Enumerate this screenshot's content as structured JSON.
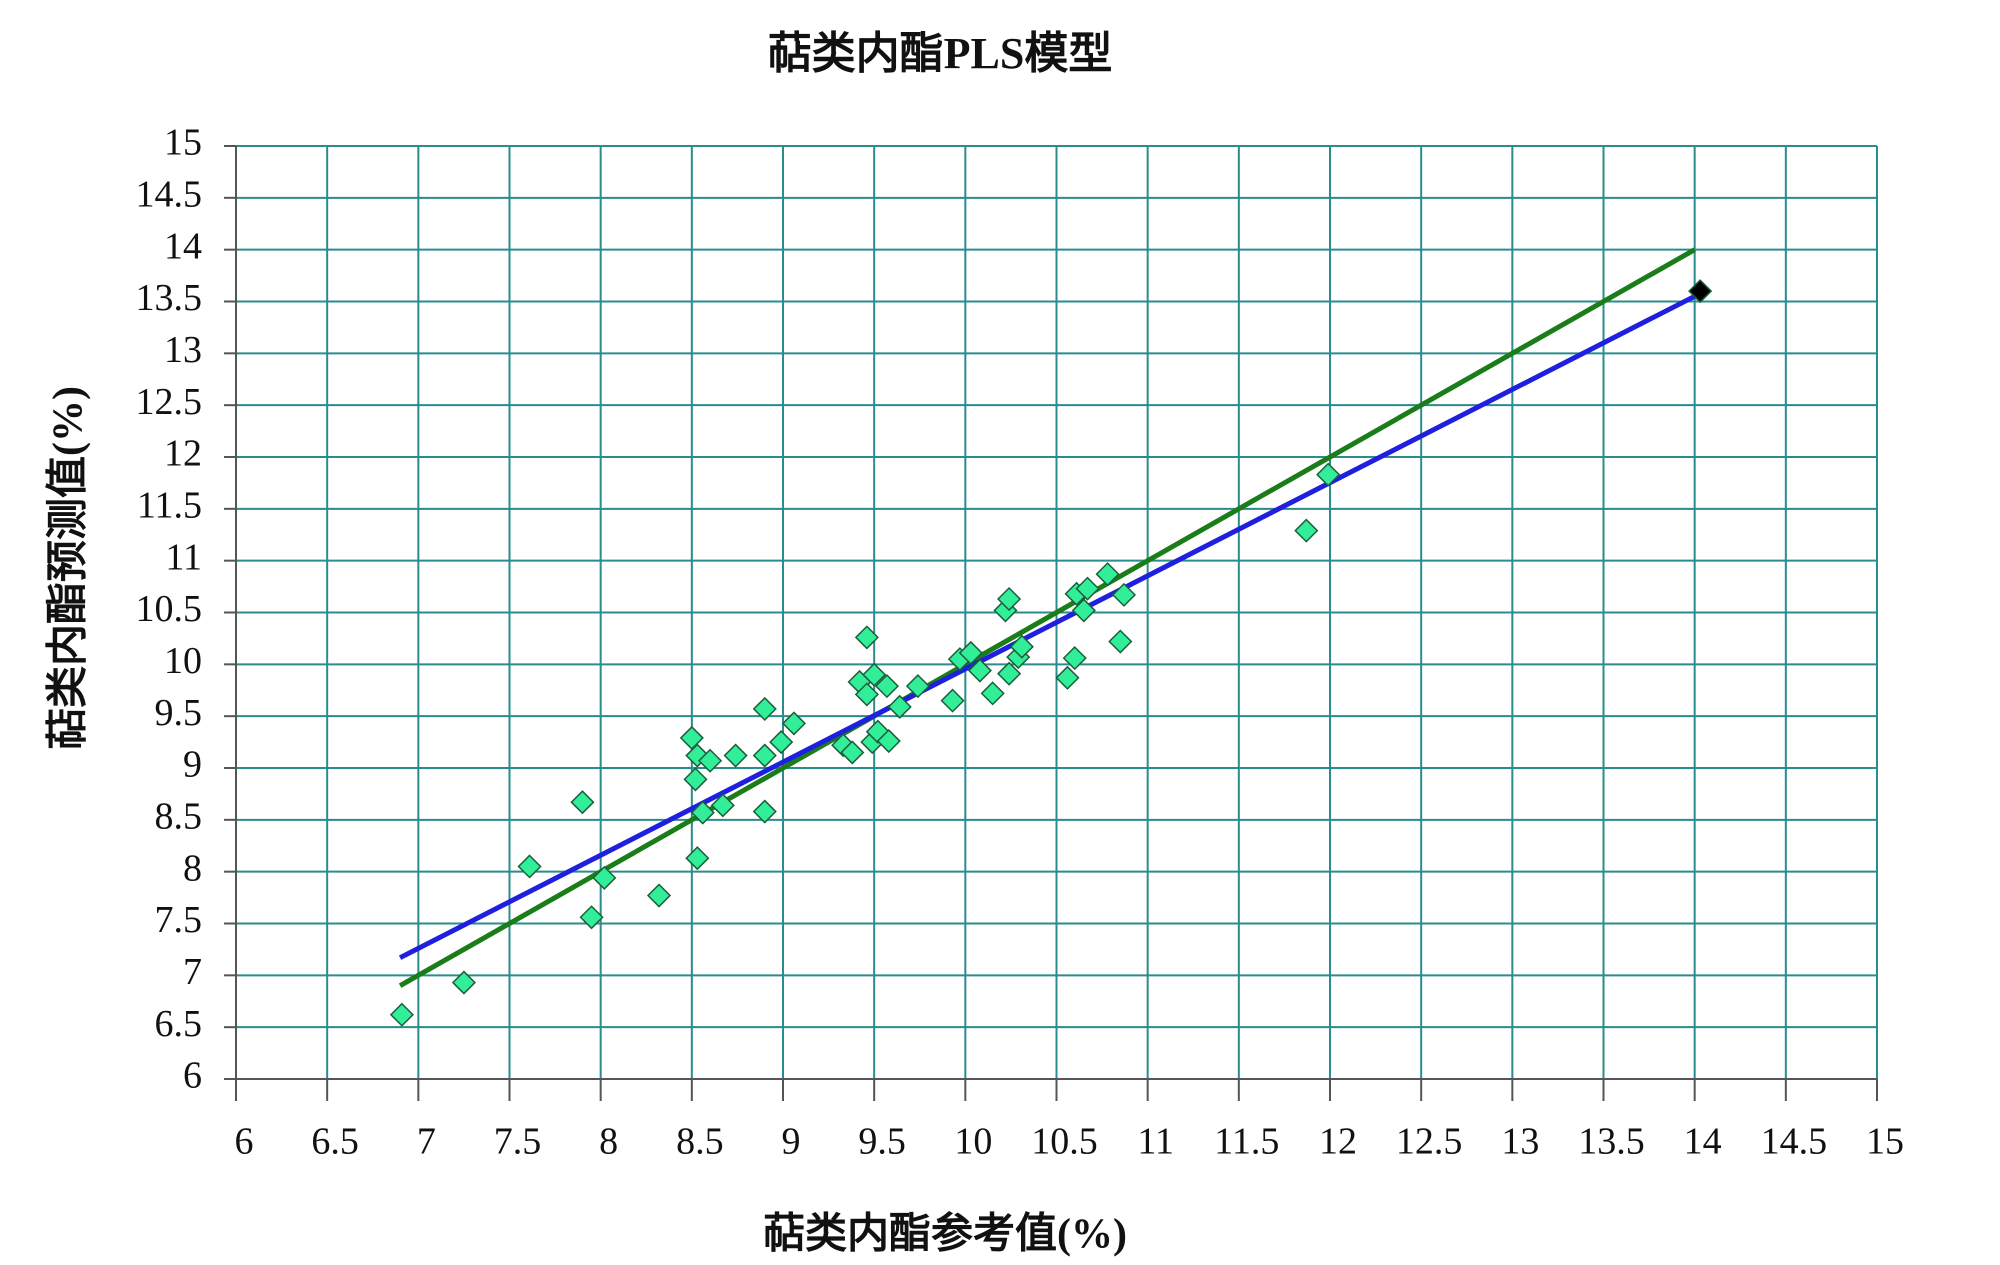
{
  "chart_data": {
    "type": "scatter",
    "title": "萜类内酯PLS模型",
    "x_label": "萜类内酯参考值(%)",
    "y_label": "萜类内酯预测值(%)",
    "xlim": [
      6,
      15
    ],
    "ylim": [
      6,
      15
    ],
    "xticks": [
      6,
      6.5,
      7,
      7.5,
      8,
      8.5,
      9,
      9.5,
      10,
      10.5,
      11,
      11.5,
      12,
      12.5,
      13,
      13.5,
      14,
      14.5,
      15
    ],
    "yticks": [
      6,
      6.5,
      7,
      7.5,
      8,
      8.5,
      9,
      9.5,
      10,
      10.5,
      11,
      11.5,
      12,
      12.5,
      13,
      13.5,
      14,
      14.5,
      15
    ],
    "grid": true,
    "grid_color": "#2a8c8c",
    "series": [
      {
        "type": "line",
        "color": "#1a7d1a",
        "x": [
          6.9,
          14.0
        ],
        "values": [
          6.9,
          14.0
        ]
      },
      {
        "type": "line",
        "color": "#1f1fe0",
        "x": [
          6.9,
          14.0
        ],
        "values": [
          7.17,
          13.55
        ]
      },
      {
        "type": "scatter",
        "color": "#33ee99",
        "x": [
          6.91,
          7.25,
          7.61,
          7.9,
          7.95,
          8.02,
          8.32,
          8.5,
          8.52,
          8.53,
          8.53,
          8.56,
          8.6,
          8.67,
          8.74,
          8.9,
          8.9,
          8.9,
          8.99,
          9.06,
          9.33,
          9.38,
          9.42,
          9.46,
          9.46,
          9.49,
          9.5,
          9.52,
          9.57,
          9.58,
          9.64,
          9.74,
          9.93,
          9.97,
          10.03,
          10.08,
          10.15,
          10.22,
          10.24,
          10.24,
          10.29,
          10.31,
          10.56,
          10.6,
          10.61,
          10.65,
          10.67,
          10.78,
          10.85,
          10.87,
          11.87,
          11.99
        ],
        "values": [
          6.62,
          6.93,
          8.05,
          8.67,
          7.56,
          7.94,
          7.77,
          9.29,
          8.89,
          9.12,
          8.13,
          8.57,
          9.07,
          8.64,
          9.12,
          9.57,
          9.12,
          8.58,
          9.25,
          9.43,
          9.22,
          9.15,
          9.83,
          10.26,
          9.71,
          9.25,
          9.9,
          9.35,
          9.79,
          9.26,
          9.59,
          9.79,
          9.65,
          10.05,
          10.11,
          9.94,
          9.72,
          10.52,
          10.63,
          9.91,
          10.07,
          10.17,
          9.87,
          10.06,
          10.68,
          10.52,
          10.73,
          10.87,
          10.22,
          10.67,
          11.29,
          11.83
        ]
      },
      {
        "type": "scatter",
        "color": "#000000",
        "x": [
          14.03
        ],
        "values": [
          13.6
        ]
      }
    ]
  }
}
